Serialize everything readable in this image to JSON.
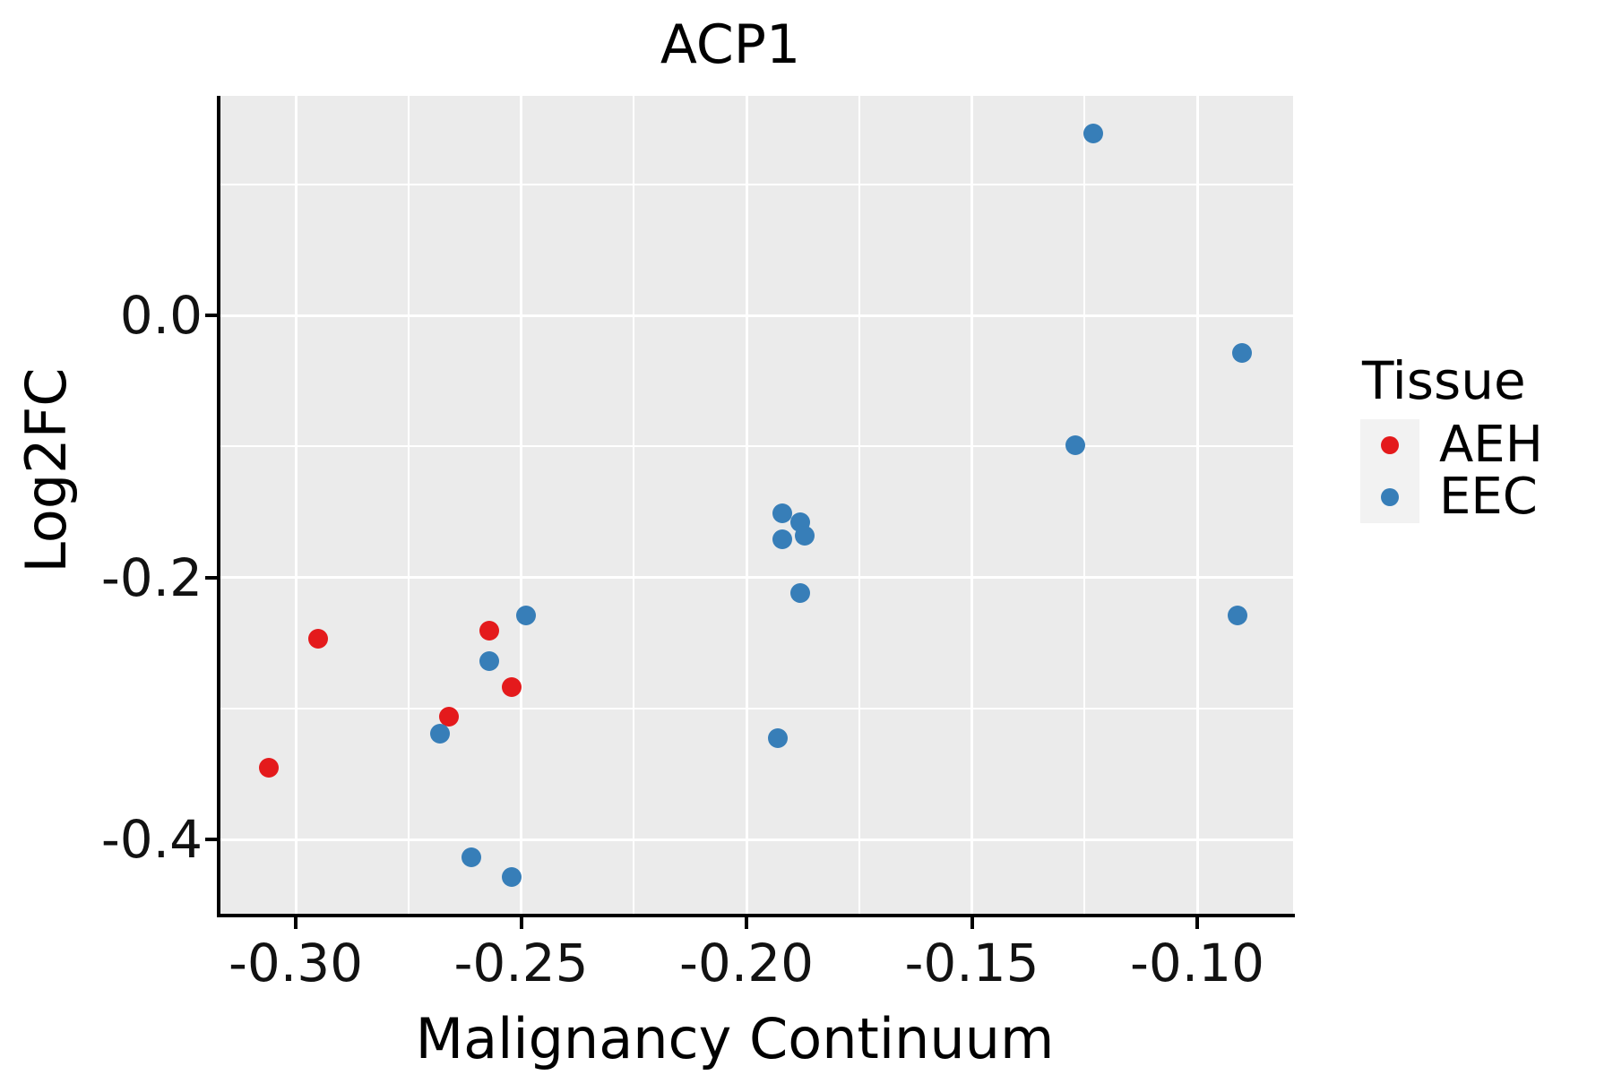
{
  "title": "ACP1",
  "axes": {
    "x": {
      "label": "Malignancy Continuum",
      "tick_labels": [
        "-0.30",
        "-0.25",
        "-0.20",
        "-0.15",
        "-0.10"
      ],
      "major_ticks": [
        -0.3,
        -0.25,
        -0.2,
        -0.15,
        -0.1
      ],
      "minor_ticks": [
        -0.275,
        -0.225,
        -0.175,
        -0.125
      ]
    },
    "y": {
      "label": "Log2FC",
      "tick_labels": [
        "0.0",
        "-0.2",
        "-0.4"
      ],
      "major_ticks": [
        0.0,
        -0.2,
        -0.4
      ],
      "minor_ticks": [
        0.1,
        -0.1,
        -0.3
      ]
    }
  },
  "legend": {
    "title": "Tissue",
    "entries": [
      {
        "label": "AEH",
        "color": "#E41A1C"
      },
      {
        "label": "EEC",
        "color": "#377EB8"
      }
    ]
  },
  "colors": {
    "panel_bg": "#EBEBEB",
    "grid": "#FFFFFF",
    "axis": "#000000",
    "legend_key_bg": "#F2F2F2",
    "aeh": "#E41A1C",
    "eec": "#377EB8"
  },
  "chart_data": {
    "type": "scatter",
    "title": "ACP1",
    "xlabel": "Malignancy Continuum",
    "ylabel": "Log2FC",
    "xlim": [
      -0.317,
      -0.079
    ],
    "ylim": [
      -0.458,
      0.168
    ],
    "grid": "white major+minor gridlines on gray panel",
    "legend_title": "Tissue",
    "legend_position": "right",
    "series": [
      {
        "name": "AEH",
        "color": "#E41A1C",
        "points": [
          [
            -0.306,
            -0.345
          ],
          [
            -0.295,
            -0.247
          ],
          [
            -0.266,
            -0.306
          ],
          [
            -0.257,
            -0.241
          ],
          [
            -0.252,
            -0.284
          ]
        ]
      },
      {
        "name": "EEC",
        "color": "#377EB8",
        "points": [
          [
            -0.268,
            -0.319
          ],
          [
            -0.261,
            -0.414
          ],
          [
            -0.252,
            -0.429
          ],
          [
            -0.257,
            -0.264
          ],
          [
            -0.249,
            -0.229
          ],
          [
            -0.192,
            -0.151
          ],
          [
            -0.188,
            -0.158
          ],
          [
            -0.192,
            -0.171
          ],
          [
            -0.187,
            -0.168
          ],
          [
            -0.188,
            -0.212
          ],
          [
            -0.193,
            -0.323
          ],
          [
            -0.123,
            0.139
          ],
          [
            -0.127,
            -0.099
          ],
          [
            -0.09,
            -0.029
          ],
          [
            -0.091,
            -0.229
          ]
        ]
      }
    ]
  }
}
